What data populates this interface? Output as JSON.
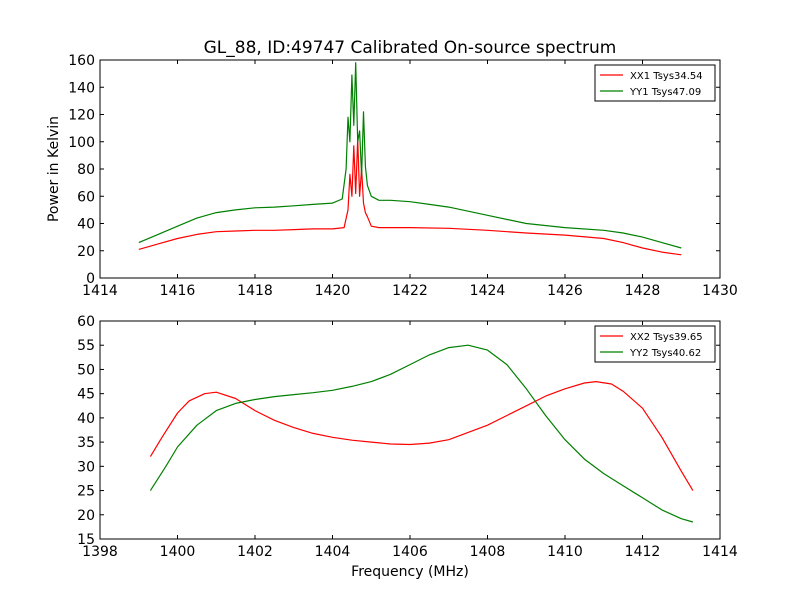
{
  "figure": {
    "title": "GL_88, ID:49747 Calibrated On-source spectrum"
  },
  "chart_data": [
    {
      "type": "line",
      "ylabel": "Power in Kelvin",
      "xlabel": "",
      "xlim": [
        1414,
        1430
      ],
      "ylim": [
        0,
        160
      ],
      "xticks": [
        1414,
        1416,
        1418,
        1420,
        1422,
        1424,
        1426,
        1428,
        1430
      ],
      "yticks": [
        0,
        20,
        40,
        60,
        80,
        100,
        120,
        140,
        160
      ],
      "legend": "top-right",
      "series": [
        {
          "name": "XX1 Tsys34.54",
          "color": "#ff0000",
          "x": [
            1415.0,
            1415.5,
            1416.0,
            1416.5,
            1417.0,
            1417.5,
            1418.0,
            1418.5,
            1419.0,
            1419.5,
            1420.0,
            1420.3,
            1420.4,
            1420.45,
            1420.5,
            1420.55,
            1420.6,
            1420.65,
            1420.7,
            1420.75,
            1420.8,
            1420.85,
            1420.9,
            1421.0,
            1421.2,
            1421.5,
            1422.0,
            1423.0,
            1424.0,
            1425.0,
            1426.0,
            1427.0,
            1427.5,
            1428.0,
            1428.5,
            1429.0
          ],
          "y": [
            21,
            25,
            29,
            32,
            34,
            34.5,
            35,
            35,
            35.5,
            36,
            36,
            37,
            50,
            76,
            60,
            97,
            62,
            102,
            60,
            80,
            55,
            48,
            45,
            38,
            37,
            37,
            37,
            36.5,
            35,
            33,
            31.5,
            29,
            26,
            22,
            19,
            17
          ]
        },
        {
          "name": "YY1 Tsys47.09",
          "color": "#008000",
          "x": [
            1415.0,
            1415.5,
            1416.0,
            1416.5,
            1417.0,
            1417.5,
            1418.0,
            1418.5,
            1419.0,
            1419.5,
            1420.0,
            1420.25,
            1420.35,
            1420.4,
            1420.45,
            1420.5,
            1420.55,
            1420.6,
            1420.65,
            1420.7,
            1420.75,
            1420.8,
            1420.85,
            1420.9,
            1421.0,
            1421.2,
            1421.5,
            1422.0,
            1422.5,
            1423.0,
            1424.0,
            1425.0,
            1426.0,
            1427.0,
            1427.5,
            1428.0,
            1428.5,
            1429.0
          ],
          "y": [
            26,
            32,
            38,
            44,
            48,
            50,
            51.5,
            52,
            53,
            54,
            55,
            58,
            80,
            118,
            100,
            149,
            112,
            158,
            100,
            108,
            75,
            122,
            82,
            68,
            60,
            57,
            57,
            56,
            54,
            52,
            46,
            40,
            37,
            35,
            33,
            30,
            26,
            22
          ]
        }
      ]
    },
    {
      "type": "line",
      "ylabel": "",
      "xlabel": "Frequency (MHz)",
      "xlim": [
        1398,
        1414
      ],
      "ylim": [
        15,
        60
      ],
      "xticks": [
        1398,
        1400,
        1402,
        1404,
        1406,
        1408,
        1410,
        1412,
        1414
      ],
      "yticks": [
        15,
        20,
        25,
        30,
        35,
        40,
        45,
        50,
        55,
        60
      ],
      "legend": "top-right",
      "series": [
        {
          "name": "XX2 Tsys39.65",
          "color": "#ff0000",
          "x": [
            1399.3,
            1399.6,
            1400.0,
            1400.3,
            1400.7,
            1401.0,
            1401.5,
            1402.0,
            1402.5,
            1403.0,
            1403.5,
            1404.0,
            1404.5,
            1405.0,
            1405.5,
            1406.0,
            1406.5,
            1407.0,
            1407.5,
            1408.0,
            1408.5,
            1409.0,
            1409.5,
            1410.0,
            1410.5,
            1410.8,
            1411.2,
            1411.5,
            1412.0,
            1412.5,
            1413.0,
            1413.3
          ],
          "y": [
            32,
            36,
            41,
            43.5,
            45,
            45.3,
            44,
            41.5,
            39.5,
            38,
            36.8,
            36,
            35.4,
            35,
            34.6,
            34.5,
            34.8,
            35.5,
            37,
            38.5,
            40.5,
            42.5,
            44.5,
            46,
            47.2,
            47.5,
            47,
            45.5,
            42,
            36,
            29,
            25
          ]
        },
        {
          "name": "YY2 Tsys40.62",
          "color": "#008000",
          "x": [
            1399.3,
            1399.7,
            1400.0,
            1400.5,
            1401.0,
            1401.5,
            1402.0,
            1402.5,
            1403.0,
            1403.5,
            1404.0,
            1404.5,
            1405.0,
            1405.5,
            1406.0,
            1406.5,
            1407.0,
            1407.5,
            1408.0,
            1408.5,
            1409.0,
            1409.5,
            1410.0,
            1410.5,
            1411.0,
            1411.5,
            1412.0,
            1412.5,
            1413.0,
            1413.3
          ],
          "y": [
            25,
            30,
            34,
            38.5,
            41.5,
            43,
            43.8,
            44.4,
            44.8,
            45.2,
            45.7,
            46.5,
            47.5,
            49,
            51,
            53,
            54.5,
            55,
            54,
            51,
            46,
            40.5,
            35.5,
            31.5,
            28.5,
            26,
            23.5,
            21,
            19.2,
            18.5
          ]
        }
      ]
    }
  ]
}
